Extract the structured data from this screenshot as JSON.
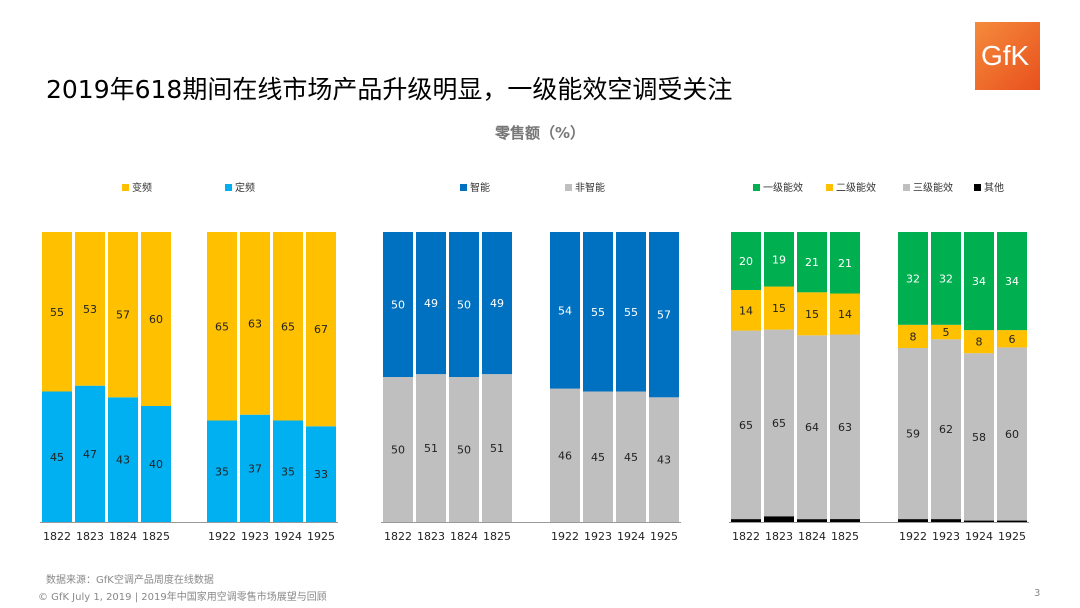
{
  "title": "2019年618期间在线市场产品升级明显，一级能效空调受关注",
  "subtitle": "零售额（%）",
  "logo_text": "GfK",
  "source": "数据来源：GfK空调产品周度在线数据",
  "footer": "© GfK July 1, 2019 | 2019年中国家用空调零售市场展望与回顾",
  "page_number": "3",
  "chart_data": [
    {
      "type": "bar",
      "stacked": true,
      "categories": [
        "1822",
        "1823",
        "1824",
        "1825",
        "1922",
        "1923",
        "1924",
        "1925"
      ],
      "ylim": [
        0,
        100
      ],
      "series": [
        {
          "name": "定频",
          "color": "#00B0F0",
          "values": [
            45,
            47,
            43,
            40,
            35,
            37,
            35,
            33
          ]
        },
        {
          "name": "变频",
          "color": "#FFC000",
          "values": [
            55,
            53,
            57,
            60,
            65,
            63,
            65,
            67
          ]
        }
      ]
    },
    {
      "type": "bar",
      "stacked": true,
      "categories": [
        "1822",
        "1823",
        "1824",
        "1825",
        "1922",
        "1923",
        "1924",
        "1925"
      ],
      "ylim": [
        0,
        100
      ],
      "series": [
        {
          "name": "非智能",
          "color": "#BFBFBF",
          "values": [
            50,
            51,
            50,
            51,
            46,
            45,
            45,
            43
          ]
        },
        {
          "name": "智能",
          "color": "#0070C0",
          "values": [
            50,
            49,
            50,
            49,
            54,
            55,
            55,
            57
          ]
        }
      ]
    },
    {
      "type": "bar",
      "stacked": true,
      "categories": [
        "1822",
        "1823",
        "1824",
        "1825",
        "1922",
        "1923",
        "1924",
        "1925"
      ],
      "ylim": [
        0,
        100
      ],
      "series": [
        {
          "name": "其他",
          "color": "#000000",
          "values": [
            1,
            2,
            1,
            1,
            1,
            1,
            0.5,
            0.5
          ],
          "unlabeled": true
        },
        {
          "name": "三级能效",
          "color": "#BFBFBF",
          "values": [
            65,
            65,
            64,
            63,
            59,
            62,
            58,
            60
          ]
        },
        {
          "name": "二级能效",
          "color": "#FFC000",
          "values": [
            14,
            15,
            15,
            14,
            8,
            5,
            8,
            6
          ]
        },
        {
          "name": "一级能效",
          "color": "#00B050",
          "values": [
            20,
            19,
            21,
            21,
            32,
            32,
            34,
            34
          ]
        }
      ]
    }
  ]
}
